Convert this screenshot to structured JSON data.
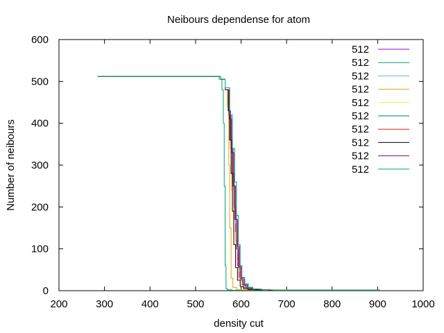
{
  "chart_data": {
    "type": "line",
    "title": "Neibours dependense for atom",
    "xlabel": "density cut",
    "ylabel": "Number of neibours",
    "xlim": [
      200,
      1000
    ],
    "ylim": [
      0,
      600
    ],
    "xticks": [
      200,
      300,
      400,
      500,
      600,
      700,
      800,
      900,
      1000
    ],
    "yticks": [
      0,
      100,
      200,
      300,
      400,
      500,
      600
    ],
    "grid": false,
    "legend_position": "top-right",
    "series": [
      {
        "name": "512",
        "color": "#9400d3",
        "x": [
          285,
          540,
          555,
          565,
          572,
          576,
          580,
          584,
          588,
          592,
          596,
          600,
          606,
          612,
          620,
          630,
          650,
          700,
          800,
          905
        ],
        "y": [
          512,
          512,
          505,
          480,
          430,
          360,
          280,
          200,
          120,
          60,
          30,
          15,
          8,
          5,
          3,
          2,
          1,
          1,
          1,
          1
        ]
      },
      {
        "name": "512",
        "color": "#009e73",
        "x": [
          285,
          540,
          552,
          558,
          561,
          563,
          565,
          567,
          570,
          580,
          600,
          650,
          700,
          800,
          905
        ],
        "y": [
          512,
          512,
          505,
          480,
          400,
          250,
          60,
          5,
          2,
          1,
          1,
          1,
          1,
          1,
          1
        ]
      },
      {
        "name": "512",
        "color": "#56b4e9",
        "x": [
          285,
          540,
          555,
          565,
          573,
          578,
          583,
          588,
          592,
          596,
          600,
          605,
          612,
          620,
          635,
          660,
          700,
          800,
          905
        ],
        "y": [
          512,
          512,
          505,
          480,
          420,
          340,
          250,
          160,
          90,
          45,
          22,
          12,
          7,
          4,
          2,
          1,
          1,
          1,
          1
        ]
      },
      {
        "name": "512",
        "color": "#e69f00",
        "x": [
          285,
          540,
          555,
          565,
          570,
          573,
          575,
          578,
          582,
          590,
          600,
          650,
          700,
          800,
          905
        ],
        "y": [
          512,
          512,
          505,
          480,
          440,
          300,
          150,
          30,
          8,
          3,
          2,
          1,
          1,
          1,
          1
        ]
      },
      {
        "name": "512",
        "color": "#f0e442",
        "x": [
          285,
          540,
          555,
          565,
          571,
          575,
          579,
          583,
          588,
          594,
          600,
          610,
          620,
          650,
          700,
          800,
          905
        ],
        "y": [
          512,
          512,
          505,
          480,
          430,
          340,
          240,
          140,
          70,
          30,
          14,
          6,
          3,
          2,
          1,
          1,
          1
        ]
      },
      {
        "name": "512",
        "color": "#0072b2",
        "x": [
          285,
          540,
          555,
          565,
          572,
          577,
          581,
          585,
          590,
          595,
          600,
          608,
          616,
          625,
          640,
          660,
          700,
          800,
          905
        ],
        "y": [
          512,
          512,
          505,
          480,
          430,
          360,
          280,
          190,
          110,
          55,
          25,
          12,
          6,
          4,
          2,
          1,
          1,
          1,
          1
        ]
      },
      {
        "name": "512",
        "color": "#e51e10",
        "x": [
          285,
          540,
          555,
          565,
          573,
          578,
          582,
          586,
          590,
          594,
          598,
          603,
          610,
          620,
          635,
          660,
          700,
          800,
          905
        ],
        "y": [
          512,
          512,
          505,
          480,
          420,
          340,
          250,
          170,
          100,
          55,
          28,
          14,
          7,
          4,
          2,
          1,
          1,
          1,
          1
        ]
      },
      {
        "name": "512",
        "color": "#000000",
        "x": [
          285,
          540,
          555,
          565,
          572,
          575,
          578,
          581,
          584,
          588,
          592,
          598,
          605,
          615,
          630,
          660,
          700,
          800,
          905
        ],
        "y": [
          512,
          512,
          505,
          480,
          430,
          360,
          280,
          190,
          110,
          55,
          25,
          10,
          5,
          3,
          2,
          1,
          1,
          1,
          1
        ]
      },
      {
        "name": "512",
        "color": "#8b008b",
        "x": [
          285,
          540,
          555,
          565,
          574,
          579,
          584,
          588,
          592,
          596,
          600,
          606,
          614,
          624,
          640,
          665,
          700,
          800,
          905
        ],
        "y": [
          512,
          512,
          505,
          480,
          410,
          330,
          250,
          170,
          105,
          58,
          30,
          15,
          8,
          4,
          2,
          1,
          1,
          1,
          1
        ]
      },
      {
        "name": "512",
        "color": "#00a86b",
        "x": [
          285,
          540,
          555,
          565,
          575,
          581,
          586,
          590,
          594,
          598,
          602,
          608,
          616,
          626,
          645,
          670,
          700,
          800,
          905
        ],
        "y": [
          512,
          512,
          505,
          485,
          420,
          340,
          260,
          180,
          110,
          60,
          32,
          16,
          8,
          4,
          2,
          1,
          1,
          1,
          1
        ]
      }
    ]
  }
}
